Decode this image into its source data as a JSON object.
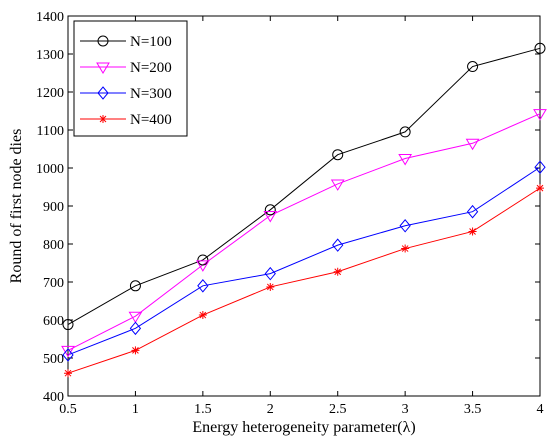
{
  "chart_data": {
    "type": "line",
    "title": "",
    "xlabel": "Energy heterogeneity parameter(λ)",
    "ylabel": "Round of first node dies",
    "x": [
      0.5,
      1,
      1.5,
      2,
      2.5,
      3,
      3.5,
      4
    ],
    "x_ticks": [
      "0.5",
      "1",
      "1.5",
      "2",
      "2.5",
      "3",
      "3.5",
      "4"
    ],
    "y_ticks": [
      "400",
      "500",
      "600",
      "700",
      "800",
      "900",
      "1000",
      "1100",
      "1200",
      "1300",
      "1400"
    ],
    "xlim": [
      0.5,
      4
    ],
    "ylim": [
      400,
      1400
    ],
    "grid": false,
    "legend_position": "top-left",
    "series": [
      {
        "name": "N=100",
        "color": "#000000",
        "marker": "circle",
        "values": [
          588,
          690,
          758,
          890,
          1035,
          1095,
          1267,
          1315
        ]
      },
      {
        "name": "N=200",
        "color": "#ff00ff",
        "marker": "triangle-down",
        "values": [
          520,
          610,
          745,
          875,
          958,
          1025,
          1065,
          1143
        ]
      },
      {
        "name": "N=300",
        "color": "#0000ff",
        "marker": "diamond",
        "values": [
          508,
          578,
          690,
          722,
          797,
          848,
          885,
          1002
        ]
      },
      {
        "name": "N=400",
        "color": "#ff0000",
        "marker": "asterisk",
        "values": [
          460,
          520,
          613,
          687,
          727,
          788,
          833,
          947
        ]
      }
    ]
  }
}
